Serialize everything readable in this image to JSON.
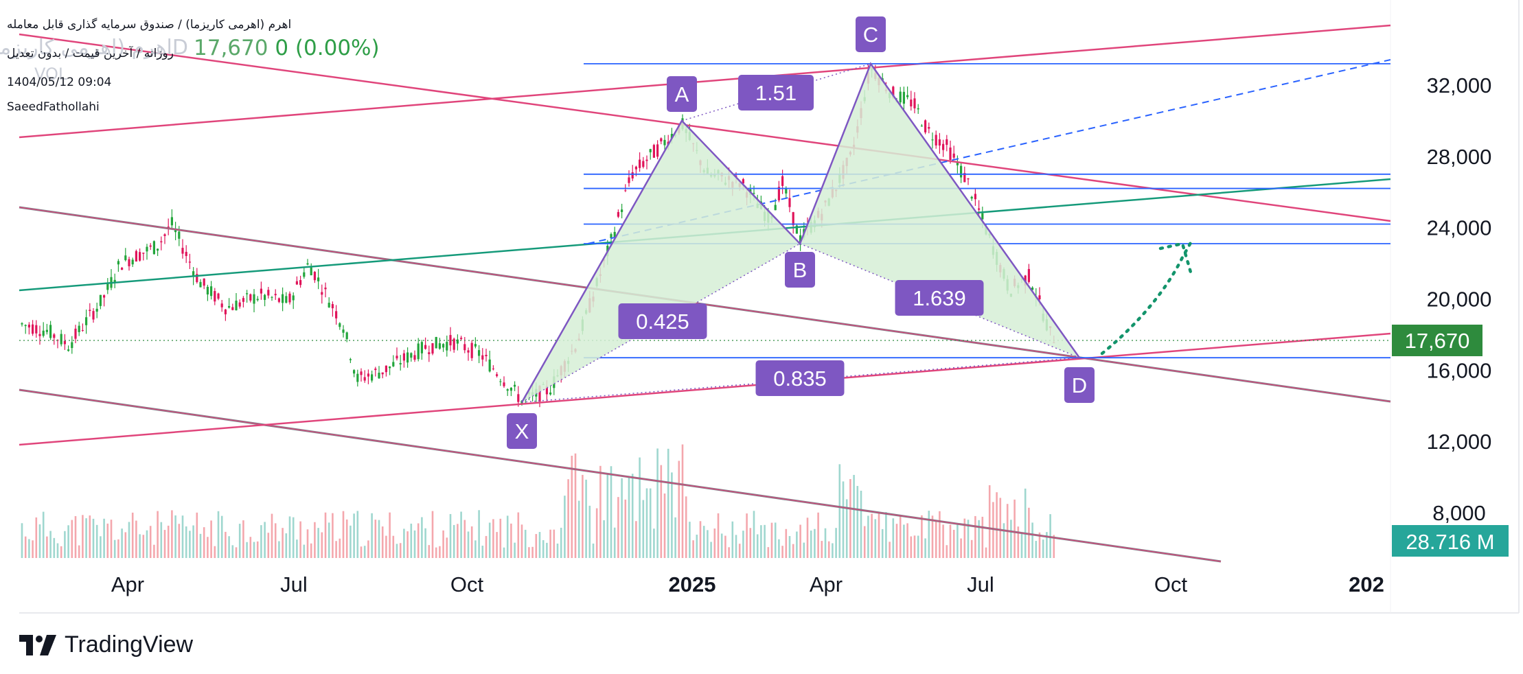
{
  "header": {
    "title": "اهرم (اهرمی کاریزما) / صندوق سرمایه گذاری قابل معامله",
    "ghost_symbol": "اهرم (اهرمی کاریزما) 1D",
    "price_text": "17,670",
    "change_text": "0 (0.00%)",
    "subtitle": "روزانه / آخرین قیمت / بدون تعدیل",
    "ghost_sub": "VOL",
    "datetime": "1404/05/12 09:04",
    "author": "SaeedFathollahi"
  },
  "brand": {
    "name": "TradingView"
  },
  "colors": {
    "up": "#26a69a",
    "down": "#ef5350",
    "candle_up": "#22a53b",
    "candle_down": "#e0145a",
    "harmonic": "#7e57c2",
    "harmonic_fill": "#d6eed6",
    "pink": "#e0457b",
    "teal": "#159a7a",
    "blue": "#2962ff",
    "green_dotted": "#13946b",
    "last_price_bg": "#2e8b3d",
    "volume_bg": "#26a69a"
  },
  "chart_data": {
    "type": "candlestick",
    "y_axis": {
      "ticks": [
        32000,
        28000,
        24000,
        20000,
        16000,
        12000,
        8000
      ],
      "tick_labels": [
        "32,000",
        "28,000",
        "24,000",
        "20,000",
        "16,000",
        "12,000",
        "8,000"
      ]
    },
    "x_axis": {
      "tick_labels": [
        "Apr",
        "Jul",
        "Oct",
        "2025",
        "Apr",
        "Jul",
        "Oct",
        "202"
      ]
    },
    "last_price": 17670,
    "last_price_label": "17,670",
    "volume_label": "28.716 M",
    "harmonic_pattern": {
      "points": [
        {
          "label": "X",
          "price": 14200
        },
        {
          "label": "A",
          "price": 30000
        },
        {
          "label": "B",
          "price": 23100
        },
        {
          "label": "C",
          "price": 33200
        },
        {
          "label": "D",
          "price": 16700
        }
      ],
      "ratios": [
        {
          "label": "1.51",
          "leg": "A-C"
        },
        {
          "label": "0.425",
          "leg": "X-B"
        },
        {
          "label": "1.639",
          "leg": "B-D"
        },
        {
          "label": "0.835",
          "leg": "X-D"
        }
      ]
    },
    "horizontal_levels": [
      33200,
      27000,
      26200,
      24200,
      23100,
      16700
    ]
  }
}
